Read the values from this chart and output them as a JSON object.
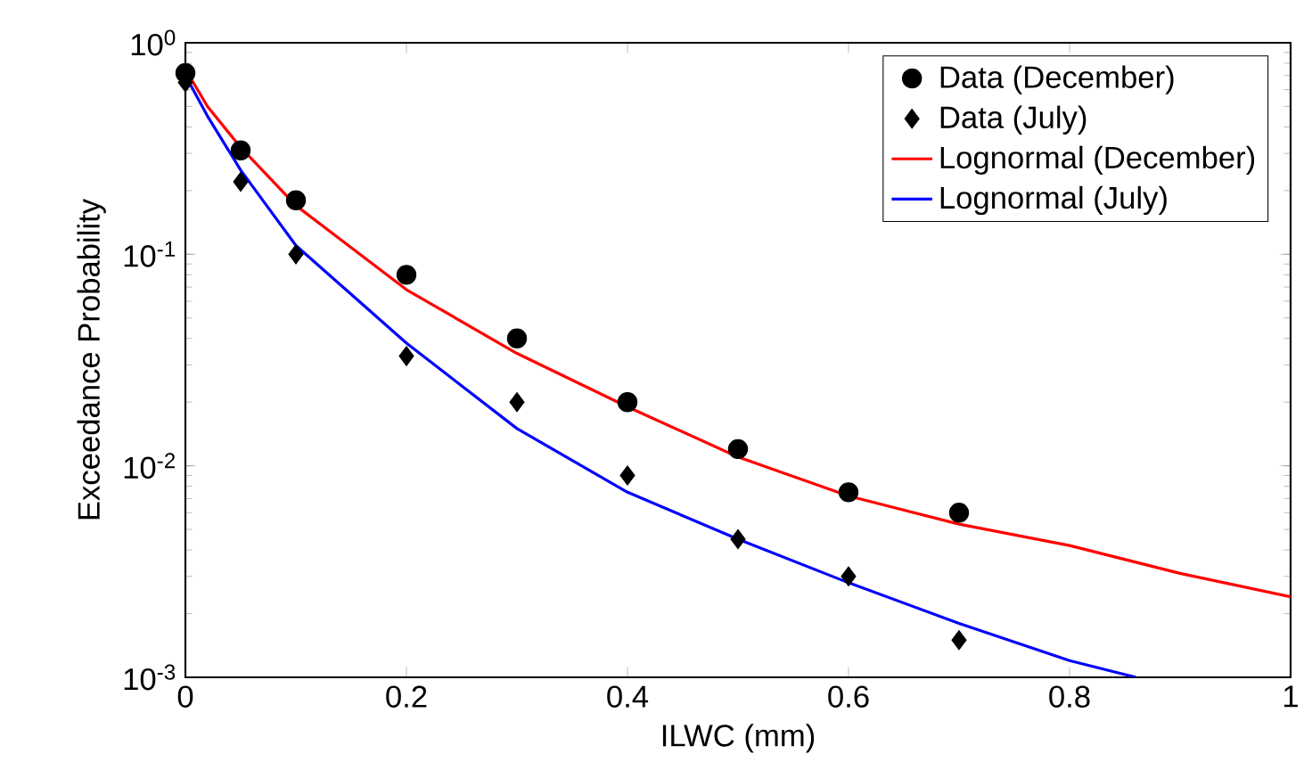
{
  "chart_data": {
    "type": "scatter",
    "xlabel": "ILWC (mm)",
    "ylabel": "Exceedance Probability",
    "log": "y",
    "grid": false,
    "legend": "top right",
    "xlim": [
      0,
      1
    ],
    "ylim": [
      0.001,
      1
    ],
    "xticks": [
      0,
      0.2,
      0.4,
      0.6,
      0.8,
      1
    ],
    "yticks": [
      {
        "value": 0.001,
        "label": "10$^{-3}$"
      },
      {
        "value": 0.01,
        "label": "10$^{-2}$"
      },
      {
        "value": 0.1,
        "label": "10$^{-1}$"
      },
      {
        "value": 1,
        "label": "10$^{0}$"
      }
    ],
    "series": [
      {
        "name": "Data (December)",
        "marker": "circle",
        "color": "#000000",
        "x": [
          0,
          0.05,
          0.1,
          0.2,
          0.3,
          0.4,
          0.5,
          0.6,
          0.7
        ],
        "values": [
          0.72,
          0.31,
          0.18,
          0.08,
          0.04,
          0.02,
          0.012,
          0.0075,
          0.006
        ]
      },
      {
        "name": "Data (July)",
        "marker": "diamond",
        "color": "#000000",
        "x": [
          0,
          0.05,
          0.1,
          0.2,
          0.3,
          0.4,
          0.5,
          0.6,
          0.7
        ],
        "values": [
          0.65,
          0.22,
          0.1,
          0.033,
          0.02,
          0.009,
          0.0045,
          0.003,
          0.0015
        ]
      },
      {
        "name": "Lognormal (December)",
        "type": "line",
        "marker": "none",
        "line_style": "solid",
        "color": "#ff0000",
        "x": [
          0,
          0.02,
          0.05,
          0.1,
          0.2,
          0.3,
          0.4,
          0.5,
          0.6,
          0.7,
          0.8,
          0.9,
          1
        ],
        "values": [
          0.75,
          0.5,
          0.32,
          0.17,
          0.068,
          0.034,
          0.019,
          0.011,
          0.0072,
          0.0053,
          0.0042,
          0.0031,
          0.0024
        ]
      },
      {
        "name": "Lognormal (July)",
        "type": "line",
        "marker": "none",
        "line_style": "solid",
        "color": "#0000ff",
        "x": [
          0,
          0.02,
          0.05,
          0.1,
          0.2,
          0.3,
          0.4,
          0.5,
          0.6,
          0.7,
          0.8,
          0.86
        ],
        "values": [
          0.7,
          0.45,
          0.25,
          0.11,
          0.038,
          0.015,
          0.0075,
          0.0045,
          0.0028,
          0.0018,
          0.0012,
          0.001
        ]
      }
    ]
  }
}
